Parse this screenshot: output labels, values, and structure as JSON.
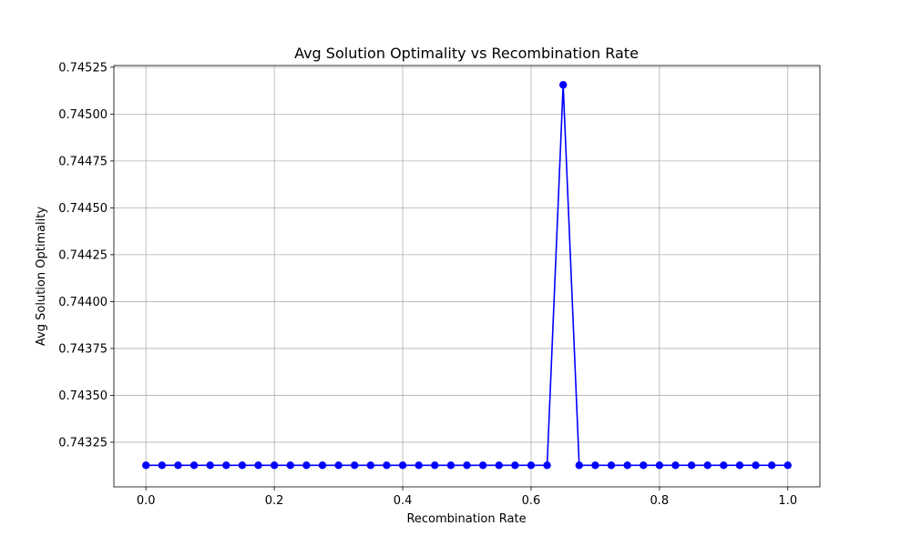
{
  "chart_data": {
    "type": "line",
    "title": "Avg Solution Optimality vs Recombination Rate",
    "xlabel": "Recombination Rate",
    "ylabel": "Avg Solution Optimality",
    "xlim": [
      -0.05,
      1.05
    ],
    "ylim": [
      0.743012,
      0.745259
    ],
    "grid": true,
    "series_color": "#0000ff",
    "x_ticks": [
      0.0,
      0.2,
      0.4,
      0.6,
      0.8,
      1.0
    ],
    "x_tick_labels": [
      "0.0",
      "0.2",
      "0.4",
      "0.6",
      "0.8",
      "1.0"
    ],
    "y_ticks": [
      0.74325,
      0.7435,
      0.74375,
      0.744,
      0.74425,
      0.7445,
      0.74475,
      0.745,
      0.74525
    ],
    "y_tick_labels": [
      "0.74325",
      "0.74350",
      "0.74375",
      "0.74400",
      "0.74425",
      "0.74450",
      "0.74475",
      "0.74500",
      "0.74525"
    ],
    "x": [
      0.0,
      0.025,
      0.05,
      0.075,
      0.1,
      0.125,
      0.15,
      0.175,
      0.2,
      0.225,
      0.25,
      0.275,
      0.3,
      0.325,
      0.35,
      0.375,
      0.4,
      0.425,
      0.45,
      0.475,
      0.5,
      0.525,
      0.55,
      0.575,
      0.6,
      0.625,
      0.65,
      0.675,
      0.7,
      0.725,
      0.75,
      0.775,
      0.8,
      0.825,
      0.85,
      0.875,
      0.9,
      0.925,
      0.95,
      0.975,
      1.0
    ],
    "y": [
      0.743127,
      0.743127,
      0.743127,
      0.743127,
      0.743127,
      0.743127,
      0.743127,
      0.743127,
      0.743127,
      0.743127,
      0.743127,
      0.743127,
      0.743127,
      0.743127,
      0.743127,
      0.743127,
      0.743127,
      0.743127,
      0.743127,
      0.743127,
      0.743127,
      0.743127,
      0.743127,
      0.743127,
      0.743127,
      0.743127,
      0.745156,
      0.743127,
      0.743127,
      0.743127,
      0.743127,
      0.743127,
      0.743127,
      0.743127,
      0.743127,
      0.743127,
      0.743127,
      0.743127,
      0.743127,
      0.743127,
      0.743127
    ]
  }
}
